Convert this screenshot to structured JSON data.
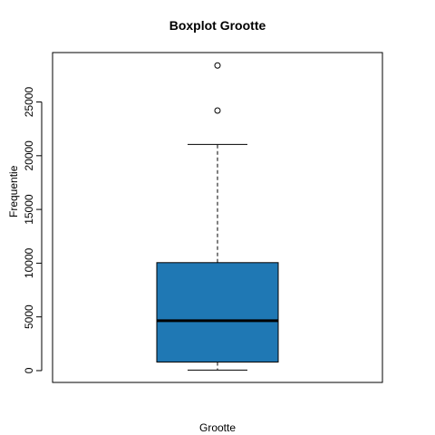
{
  "chart_data": {
    "type": "boxplot",
    "title": "Boxplot Grootte",
    "xlabel": "Grootte",
    "ylabel": "Frequentie",
    "ylim": [
      -1100,
      29600
    ],
    "yticks": [
      0,
      5000,
      10000,
      15000,
      20000,
      25000
    ],
    "box": {
      "whisker_low": 50,
      "q1": 800,
      "median": 4650,
      "q3": 10050,
      "whisker_high": 21050
    },
    "outliers": [
      24200,
      28400
    ],
    "box_color": "#1F78B4",
    "grid": false,
    "legend": "none"
  }
}
